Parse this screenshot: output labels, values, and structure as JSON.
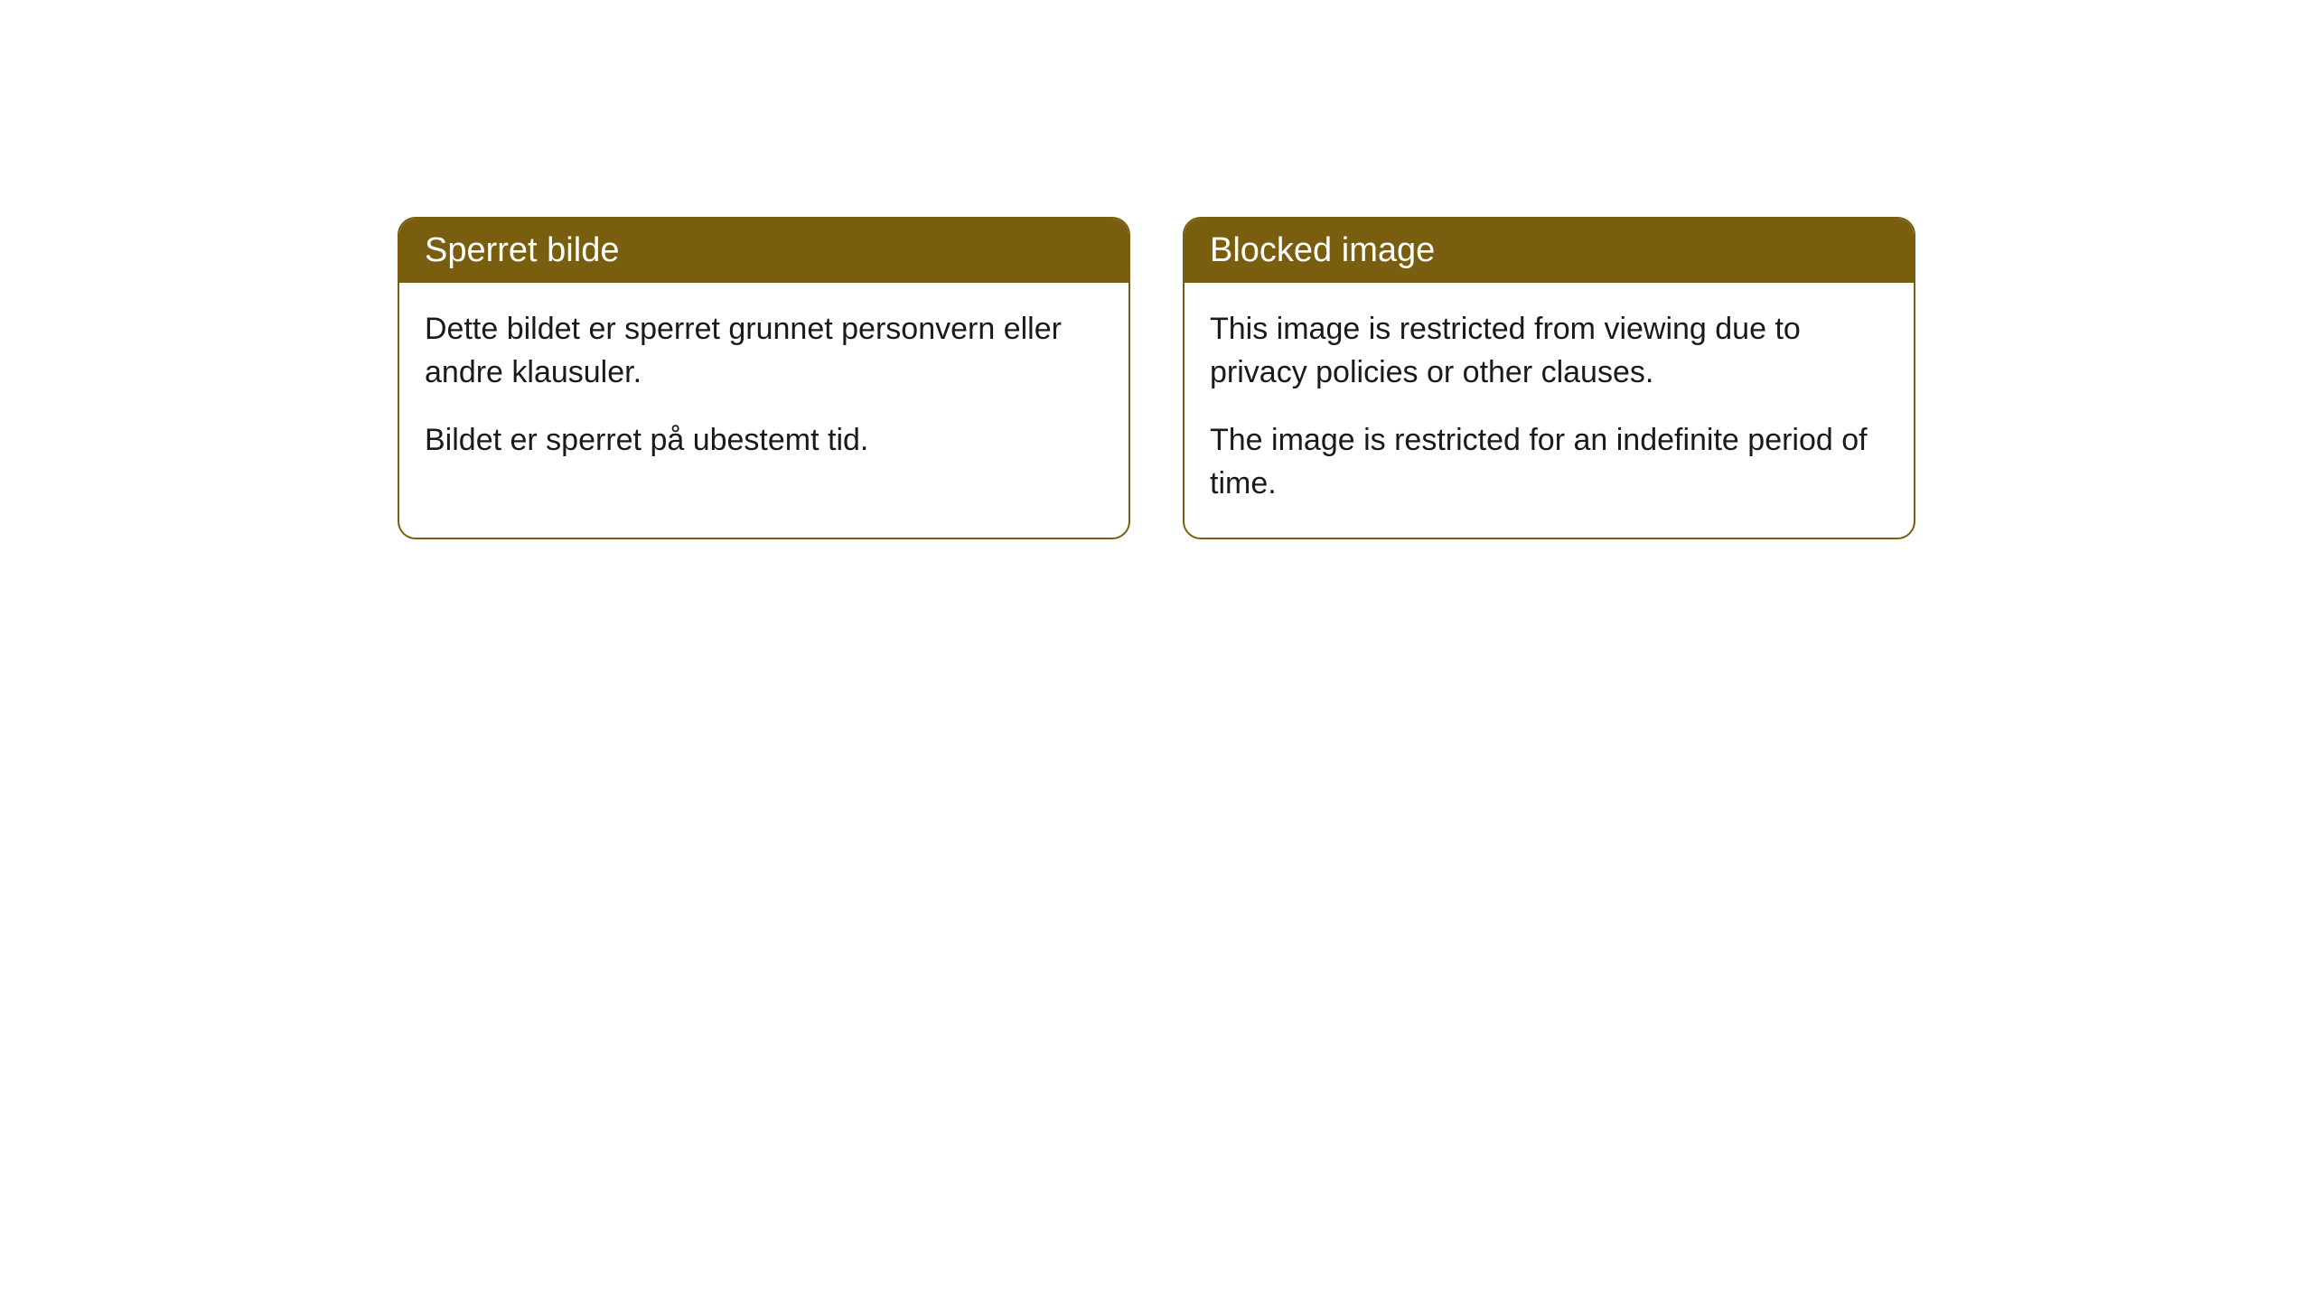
{
  "cards": [
    {
      "title": "Sperret bilde",
      "paragraph1": "Dette bildet er sperret grunnet personvern eller andre klausuler.",
      "paragraph2": "Bildet er sperret på ubestemt tid."
    },
    {
      "title": "Blocked image",
      "paragraph1": "This image is restricted from viewing due to privacy policies or other clauses.",
      "paragraph2": "The image is restricted for an indefinite period of time."
    }
  ],
  "styling": {
    "header_background_color": "#7a5e0f",
    "header_text_color": "#ffffff",
    "border_color": "#7a5e0f",
    "body_text_color": "#1a1a1a",
    "card_background_color": "#ffffff",
    "page_background_color": "#ffffff",
    "border_radius": 20,
    "header_font_size": 38,
    "body_font_size": 34
  }
}
